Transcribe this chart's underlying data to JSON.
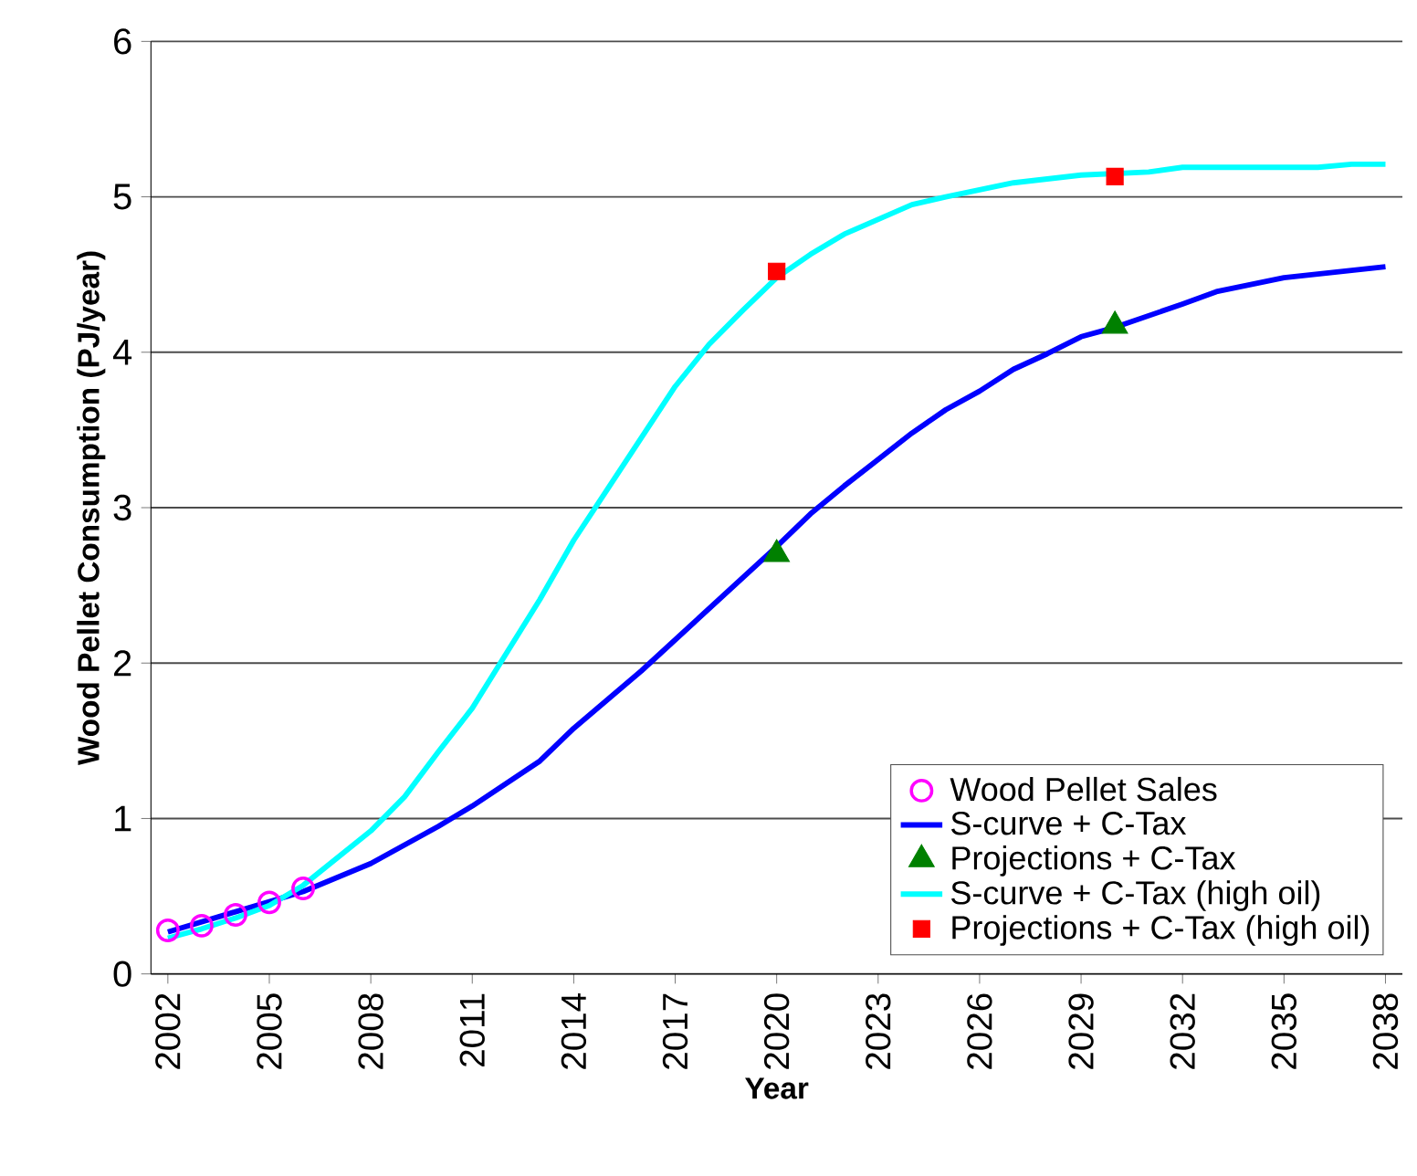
{
  "chart_data": {
    "type": "line",
    "xlabel": "Year",
    "ylabel": "Wood Pellet Consumption (PJ/year)",
    "xlim": [
      2001.5,
      2038.5
    ],
    "xticks": [
      2002,
      2005,
      2008,
      2011,
      2014,
      2017,
      2020,
      2023,
      2026,
      2029,
      2032,
      2035,
      2038
    ],
    "ylim": [
      0,
      6
    ],
    "yticks": [
      0,
      1,
      2,
      3,
      4,
      5,
      6
    ],
    "grid": "y",
    "legend": "bottom right",
    "series": [
      {
        "name": "Wood Pellet Sales",
        "type": "scatter",
        "marker": "circle",
        "color": "#ff00ff",
        "x": [
          2002,
          2003,
          2004,
          2005,
          2006
        ],
        "values": [
          0.28,
          0.31,
          0.38,
          0.46,
          0.55
        ]
      },
      {
        "name": "S-curve + C-Tax",
        "marker": "none",
        "color": "#0000ff",
        "x": [
          2002,
          2004,
          2006,
          2008,
          2010,
          2011,
          2013,
          2014,
          2016,
          2017,
          2019,
          2020,
          2021,
          2022,
          2024,
          2025,
          2026,
          2027,
          2028,
          2029,
          2030,
          2032,
          2033,
          2035,
          2038
        ],
        "values": [
          0.27,
          0.4,
          0.53,
          0.71,
          0.95,
          1.08,
          1.37,
          1.58,
          1.95,
          2.15,
          2.55,
          2.75,
          2.96,
          3.14,
          3.48,
          3.63,
          3.75,
          3.89,
          3.99,
          4.1,
          4.16,
          4.31,
          4.39,
          4.48,
          4.55
        ]
      },
      {
        "name": "Projections + C-Tax",
        "type": "scatter",
        "marker": "triangle",
        "color": "#008000",
        "x": [
          2020,
          2030
        ],
        "values": [
          2.7,
          4.17
        ]
      },
      {
        "name": "S-curve + C-Tax (high oil)",
        "marker": "none",
        "color": "#00ffff",
        "x": [
          2002,
          2003,
          2004,
          2005,
          2006,
          2008,
          2009,
          2010,
          2011,
          2012,
          2013,
          2014,
          2015,
          2016,
          2017,
          2018,
          2019,
          2020,
          2021,
          2022,
          2024,
          2025,
          2027,
          2029,
          2031,
          2032,
          2036,
          2037,
          2038
        ],
        "values": [
          0.23,
          0.29,
          0.36,
          0.44,
          0.57,
          0.92,
          1.14,
          1.43,
          1.71,
          2.06,
          2.41,
          2.79,
          3.12,
          3.45,
          3.78,
          4.05,
          4.27,
          4.48,
          4.63,
          4.76,
          4.95,
          5.0,
          5.09,
          5.14,
          5.16,
          5.19,
          5.19,
          5.21,
          5.21
        ]
      },
      {
        "name": "Projections + C-Tax (high oil)",
        "type": "scatter",
        "marker": "square",
        "color": "#ff0000",
        "x": [
          2020,
          2030
        ],
        "values": [
          4.52,
          5.13
        ]
      }
    ]
  }
}
